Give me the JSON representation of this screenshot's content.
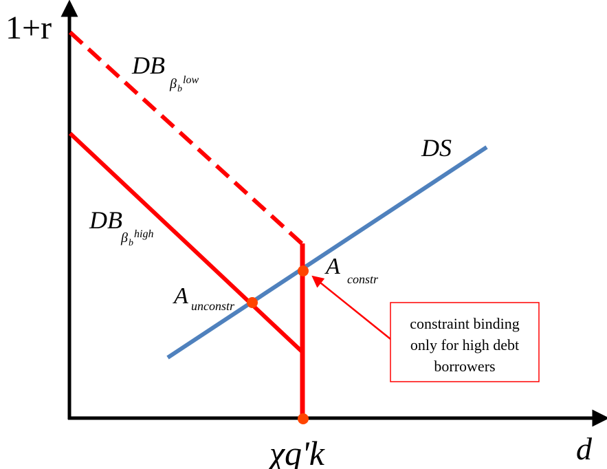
{
  "axes": {
    "y_label": "1+r",
    "x_label": "d",
    "x_tick": "χq'k"
  },
  "curves": {
    "supply": {
      "label": "DS",
      "color": "#4F81BD"
    },
    "demand_low": {
      "base": "DB",
      "sub": "β",
      "subsub": "b",
      "sup": "low",
      "color": "#FF0000",
      "style": "dashed"
    },
    "demand_high": {
      "base": "DB",
      "sub": "β",
      "subsub": "b",
      "sup": "high",
      "color": "#FF0000",
      "style": "solid"
    },
    "constraint": {
      "color": "#FF0000"
    }
  },
  "points": {
    "constrained": {
      "base": "A",
      "sub": "constr",
      "color": "#FF4500"
    },
    "unconstrained": {
      "base": "A",
      "sub": "unconstr",
      "color": "#FF4500"
    },
    "axis_point": {
      "color": "#FF4500"
    }
  },
  "annotation": {
    "lines": [
      "constraint binding",
      "only for high debt",
      "borrowers"
    ],
    "border_color": "#FF0000",
    "arrow_color": "#FF0000"
  }
}
